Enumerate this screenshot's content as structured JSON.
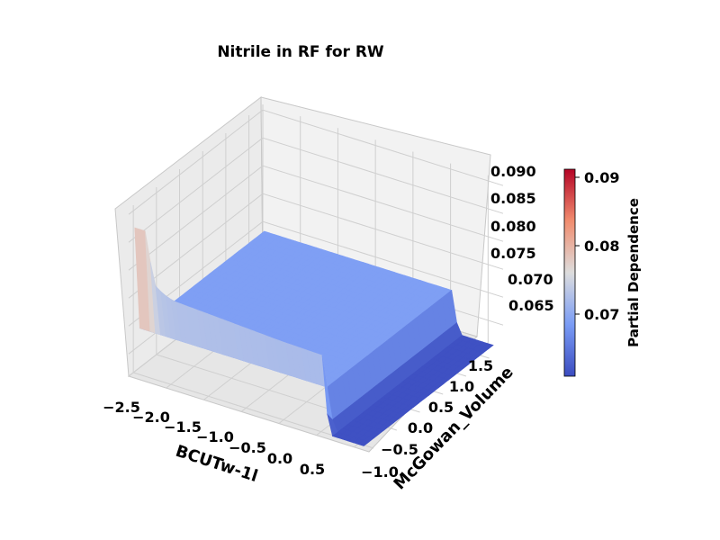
{
  "chart_data": {
    "type": "surface3d",
    "title": "Nitrile in RF for RW",
    "xlabel": "BCUTw-1l",
    "ylabel": "McGowan_Volume",
    "zlabel": "",
    "x_ticks": [
      "−2.5",
      "−2.0",
      "−1.5",
      "−1.0",
      "−0.5",
      "0.0",
      "0.5"
    ],
    "y_ticks": [
      "−1.0",
      "−0.5",
      "0.0",
      "0.5",
      "1.0",
      "1.5"
    ],
    "z_ticks": [
      "0.065",
      "0.070",
      "0.075",
      "0.080",
      "0.085",
      "0.090"
    ],
    "xlim": [
      -2.5,
      0.7
    ],
    "ylim": [
      -1.1,
      1.8
    ],
    "zlim": [
      0.061,
      0.091
    ],
    "colormap": "coolwarm",
    "surface_profile": {
      "description_points_x": [
        -2.45,
        -2.3,
        -2.2,
        -2.1,
        -2.0,
        -1.9,
        -1.5,
        -1.0,
        -0.5,
        0.0,
        0.1,
        0.12,
        0.6
      ],
      "partial_dependence_at_y_min": [
        0.0875,
        0.0875,
        0.0785,
        0.0775,
        0.0768,
        0.0765,
        0.0762,
        0.0758,
        0.0754,
        0.0752,
        0.0752,
        0.0613,
        0.0613
      ],
      "partial_dependence_at_y_max": [
        0.0688,
        0.0688,
        0.0688,
        0.0688,
        0.0688,
        0.0688,
        0.0688,
        0.0688,
        0.0688,
        0.0688,
        0.0688,
        0.0613,
        0.0613
      ]
    },
    "colorbar": {
      "label": "Partial Dependence",
      "ticks": [
        "0.07",
        "0.08",
        "0.09"
      ],
      "tick_values": [
        0.07,
        0.08,
        0.09
      ],
      "range": [
        0.0608,
        0.0912
      ],
      "colors": {
        "low": "#3b4cc0",
        "mid": "#dddddd",
        "high": "#b40426"
      }
    },
    "grid": true,
    "pane_color": "#f2f2f2"
  }
}
